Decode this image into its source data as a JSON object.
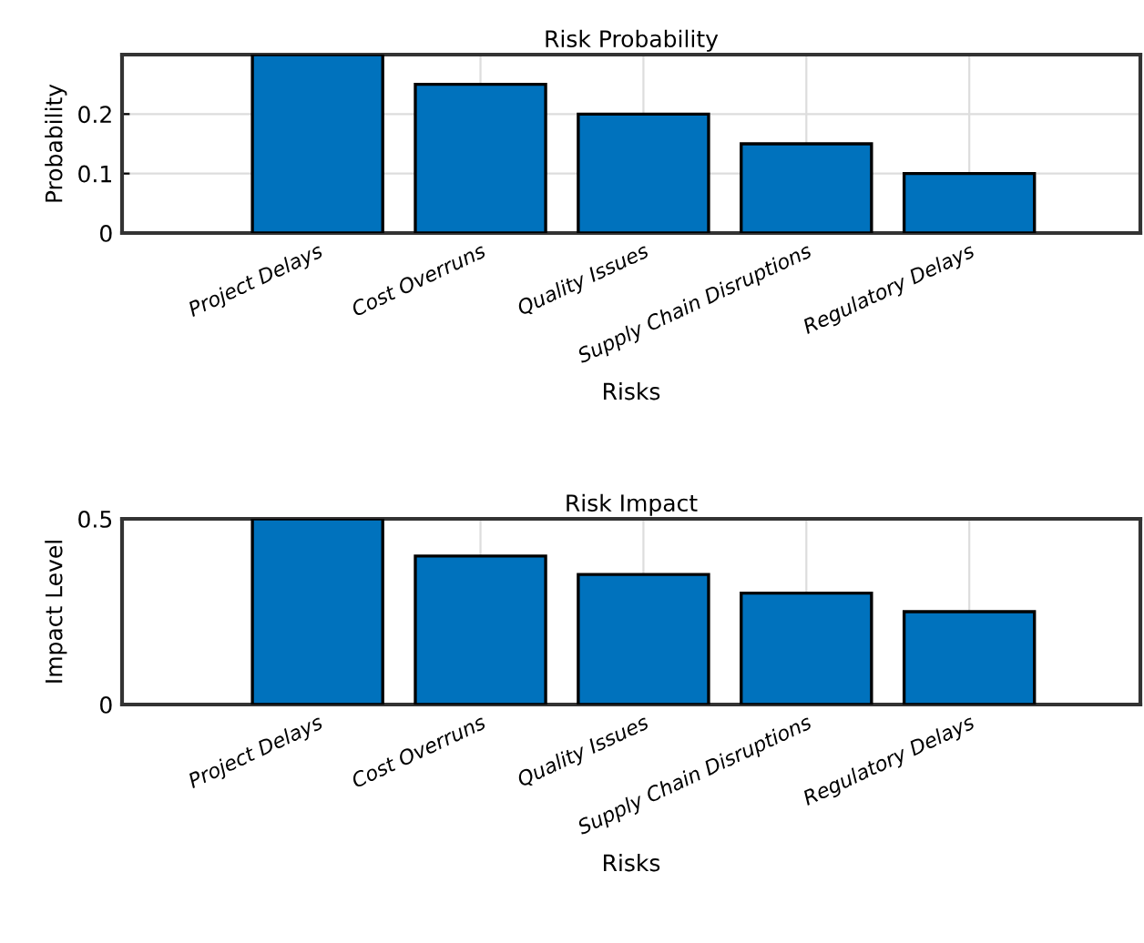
{
  "chart_data": [
    {
      "type": "bar",
      "title": "Risk Probability",
      "xlabel": "Risks",
      "ylabel": "Probability",
      "categories": [
        "Project Delays",
        "Cost Overruns",
        "Quality Issues",
        "Supply Chain Disruptions",
        "Regulatory Delays"
      ],
      "values": [
        0.3,
        0.25,
        0.2,
        0.15,
        0.1
      ],
      "color": "#0072bd",
      "ylim": [
        0,
        0.3
      ],
      "yticks": [
        0,
        0.1,
        0.2
      ],
      "grid": true
    },
    {
      "type": "bar",
      "title": "Risk Impact",
      "xlabel": "Risks",
      "ylabel": "Impact Level",
      "categories": [
        "Project Delays",
        "Cost Overruns",
        "Quality Issues",
        "Supply Chain Disruptions",
        "Regulatory Delays"
      ],
      "values": [
        0.5,
        0.4,
        0.35,
        0.3,
        0.25
      ],
      "color": "#0072bd",
      "ylim": [
        0,
        0.5
      ],
      "yticks": [
        0,
        0.5
      ],
      "grid": true
    }
  ]
}
